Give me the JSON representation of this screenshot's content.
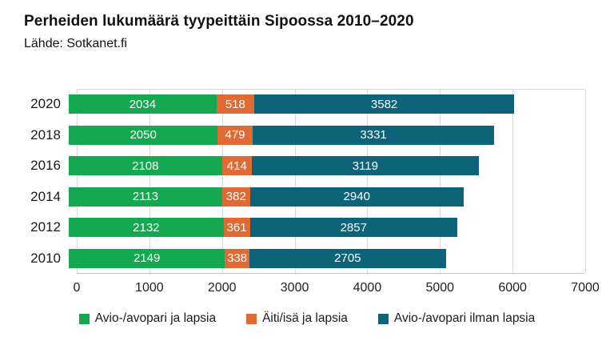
{
  "header": {
    "title": "Perheiden lukumäärä tyypeittäin Sipoossa 2010–2020",
    "source": "Lähde: Sotkanet.fi"
  },
  "chart_data": {
    "type": "bar",
    "orientation": "horizontal",
    "stacked": true,
    "title": "Perheiden lukumäärä tyypeittäin Sipoossa 2010–2020",
    "subtitle": "Lähde: Sotkanet.fi",
    "categories": [
      "2020",
      "2018",
      "2016",
      "2014",
      "2012",
      "2010"
    ],
    "series": [
      {
        "name": "Avio-/avopari ja lapsia",
        "color": "#14a950",
        "values": [
          2034,
          2050,
          2108,
          2113,
          2132,
          2149
        ]
      },
      {
        "name": "Äiti/isä ja lapsia",
        "color": "#e06a33",
        "values": [
          518,
          479,
          414,
          382,
          361,
          338
        ]
      },
      {
        "name": "Avio-/avopari ilman lapsia",
        "color": "#0d6378",
        "values": [
          3582,
          3331,
          3119,
          2940,
          2857,
          2705
        ]
      }
    ],
    "xlabel": "",
    "ylabel": "",
    "xlim": [
      0,
      7000
    ],
    "x_ticks": [
      "0",
      "1000",
      "2000",
      "3000",
      "4000",
      "5000",
      "6000",
      "7000"
    ],
    "grid": "vertical",
    "legend_position": "bottom",
    "value_labels": "inside-white",
    "colors": {
      "gridline": "#d8d8d8",
      "axis_line": "#c9c9c9",
      "background": "#ffffff",
      "text": "#111111"
    }
  }
}
